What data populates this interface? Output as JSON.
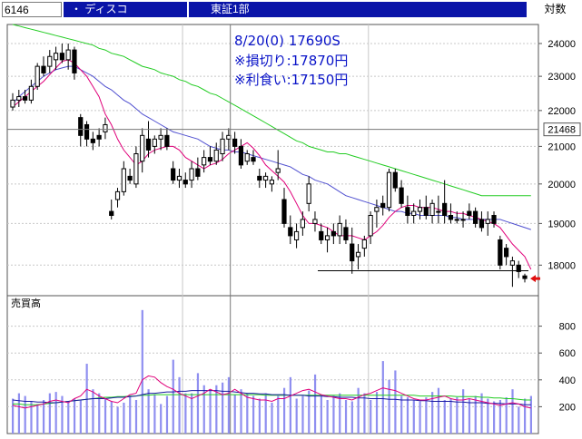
{
  "header": {
    "code": "6146",
    "name": "・ ディスコ",
    "market": "東証1部",
    "mode": "対数"
  },
  "annotations": [
    "8/20(0) 17690S",
    "※損切り:17870円",
    "※利食い:17150円"
  ],
  "colors": {
    "header_bg": "#0a14a8",
    "candle": "#000000",
    "ma_short": "#e0007a",
    "ma_mid": "#5050d0",
    "ma_long": "#22cc22",
    "volume_bar": "#8f8ff0",
    "annotation": "#0a14c8",
    "arrow": "#e01010"
  },
  "chart_data": [
    {
      "type": "candlestick",
      "y_axis_scale": "log",
      "ylim": [
        17300,
        24600
      ],
      "y_ticks": [
        18000,
        19000,
        20000,
        21000,
        22000,
        23000,
        24000
      ],
      "current_price_marker": 21468,
      "stop_loss_line": 17870,
      "candles": [
        [
          22100,
          22500,
          22000,
          22300
        ],
        [
          22300,
          22600,
          22100,
          22400
        ],
        [
          22400,
          22600,
          22200,
          22300
        ],
        [
          22300,
          22900,
          22200,
          22700
        ],
        [
          22700,
          23400,
          22600,
          23300
        ],
        [
          23300,
          23600,
          23000,
          23100
        ],
        [
          23300,
          23800,
          23100,
          23600
        ],
        [
          23500,
          23900,
          23200,
          23700
        ],
        [
          23700,
          24000,
          23400,
          23500
        ],
        [
          23500,
          24000,
          23200,
          23800
        ],
        [
          23800,
          23900,
          22900,
          23100
        ],
        [
          21800,
          21900,
          21000,
          21300
        ],
        [
          21600,
          21700,
          21000,
          21200
        ],
        [
          21200,
          21400,
          20900,
          21100
        ],
        [
          21300,
          21500,
          21000,
          21200
        ],
        [
          21400,
          21800,
          21200,
          21600
        ],
        [
          19300,
          19600,
          19100,
          19200
        ],
        [
          19600,
          19900,
          19400,
          19800
        ],
        [
          19800,
          20600,
          19700,
          20400
        ],
        [
          20200,
          20400,
          20000,
          20100
        ],
        [
          20000,
          21000,
          19900,
          20800
        ],
        [
          20600,
          21500,
          20300,
          21300
        ],
        [
          21200,
          21700,
          20700,
          20900
        ],
        [
          21000,
          21300,
          20800,
          21200
        ],
        [
          21200,
          21500,
          20900,
          21300
        ],
        [
          21300,
          21500,
          20900,
          21000
        ],
        [
          20400,
          20600,
          20000,
          20100
        ],
        [
          20100,
          20400,
          19900,
          20200
        ],
        [
          20100,
          20300,
          19900,
          20000
        ],
        [
          20100,
          20600,
          19900,
          20400
        ],
        [
          20400,
          20700,
          20100,
          20200
        ],
        [
          20500,
          20900,
          20300,
          20700
        ],
        [
          20700,
          21000,
          20500,
          20600
        ],
        [
          20600,
          21100,
          20500,
          20900
        ],
        [
          20800,
          21400,
          20600,
          21200
        ],
        [
          21200,
          21500,
          20900,
          21300
        ],
        [
          21200,
          21400,
          20800,
          21000
        ],
        [
          21000,
          21200,
          20400,
          20500
        ],
        [
          20600,
          20900,
          20500,
          20800
        ],
        [
          20700,
          20900,
          20500,
          20600
        ],
        [
          20200,
          20400,
          19900,
          20100
        ],
        [
          20100,
          20300,
          19900,
          20200
        ],
        [
          20000,
          20200,
          19800,
          20100
        ],
        [
          20300,
          20900,
          20100,
          20400
        ],
        [
          19600,
          19900,
          18900,
          19000
        ],
        [
          18900,
          19200,
          18500,
          18700
        ],
        [
          18600,
          19000,
          18400,
          18800
        ],
        [
          18900,
          19300,
          18700,
          19100
        ],
        [
          19500,
          20200,
          19300,
          20000
        ],
        [
          19000,
          19300,
          18800,
          19100
        ],
        [
          18800,
          19000,
          18500,
          18600
        ],
        [
          18600,
          18900,
          18300,
          18700
        ],
        [
          18800,
          19000,
          18500,
          18700
        ],
        [
          18700,
          19200,
          18500,
          19000
        ],
        [
          18900,
          19100,
          18500,
          18600
        ],
        [
          18500,
          18900,
          17800,
          18100
        ],
        [
          18200,
          18500,
          17900,
          18300
        ],
        [
          18400,
          18700,
          18200,
          18600
        ],
        [
          18700,
          19300,
          18500,
          19200
        ],
        [
          19300,
          19600,
          18900,
          19400
        ],
        [
          19500,
          19700,
          19200,
          19400
        ],
        [
          19400,
          20400,
          19300,
          20300
        ],
        [
          20300,
          20400,
          19800,
          19900
        ],
        [
          19900,
          20100,
          19400,
          19500
        ],
        [
          19400,
          19700,
          19000,
          19200
        ],
        [
          19200,
          19500,
          19000,
          19300
        ],
        [
          19300,
          19600,
          19100,
          19400
        ],
        [
          19400,
          19700,
          19100,
          19200
        ],
        [
          19200,
          19600,
          19000,
          19500
        ],
        [
          19300,
          19700,
          19000,
          19300
        ],
        [
          19500,
          20100,
          19000,
          19200
        ],
        [
          19200,
          19500,
          19000,
          19100
        ],
        [
          19100,
          19300,
          19000,
          19100
        ],
        [
          19100,
          19300,
          18900,
          19100
        ],
        [
          19300,
          19500,
          19100,
          19200
        ],
        [
          19300,
          19400,
          18900,
          19000
        ],
        [
          19100,
          19300,
          18800,
          18900
        ],
        [
          19000,
          19300,
          18700,
          19100
        ],
        [
          19200,
          19300,
          18900,
          19000
        ],
        [
          18600,
          18700,
          17900,
          18000
        ],
        [
          18400,
          18500,
          18000,
          18200
        ],
        [
          18000,
          18200,
          17500,
          18100
        ],
        [
          18000,
          18100,
          17700,
          17850
        ],
        [
          17750,
          17800,
          17600,
          17690
        ]
      ],
      "ma_short": [
        22100,
        22250,
        22400,
        22550,
        22700,
        22850,
        23050,
        23250,
        23450,
        23500,
        23400,
        23200,
        23000,
        22700,
        22400,
        21900,
        21600,
        21200,
        20900,
        20700,
        20500,
        20600,
        20800,
        20900,
        20950,
        21000,
        21000,
        20900,
        20700,
        20600,
        20500,
        20400,
        20500,
        20550,
        20650,
        20800,
        20900,
        21000,
        21100,
        20950,
        20750,
        20500,
        20350,
        20200,
        20050,
        19800,
        19500,
        19200,
        19000,
        19000,
        18950,
        18900,
        18800,
        18700,
        18700,
        18700,
        18650,
        18600,
        18700,
        18800,
        18950,
        19150,
        19300,
        19400,
        19450,
        19450,
        19400,
        19400,
        19400,
        19350,
        19300,
        19300,
        19250,
        19250,
        19200,
        19150,
        19100,
        19050,
        19000,
        18900,
        18700,
        18500,
        18350,
        18200,
        17900
      ],
      "ma_mid": [
        22200,
        22400,
        22550,
        22700,
        22850,
        23000,
        23100,
        23200,
        23250,
        23300,
        23300,
        23200,
        23100,
        23000,
        22850,
        22700,
        22600,
        22450,
        22300,
        22200,
        22050,
        21900,
        21800,
        21700,
        21600,
        21500,
        21400,
        21350,
        21300,
        21250,
        21200,
        21100,
        21000,
        20950,
        20900,
        20900,
        20850,
        20850,
        20800,
        20750,
        20700,
        20650,
        20600,
        20550,
        20500,
        20450,
        20350,
        20250,
        20200,
        20100,
        20050,
        20000,
        19900,
        19800,
        19700,
        19650,
        19600,
        19550,
        19500,
        19450,
        19400,
        19350,
        19300,
        19300,
        19250,
        19250,
        19200,
        19200,
        19200,
        19200,
        19200,
        19150,
        19150,
        19100,
        19100,
        19100,
        19100,
        19100,
        19100,
        19100,
        19050,
        19000,
        18950,
        18900,
        18850
      ],
      "ma_long": [
        24600,
        24550,
        24500,
        24450,
        24400,
        24350,
        24300,
        24250,
        24200,
        24150,
        24100,
        24050,
        24000,
        23950,
        23850,
        23800,
        23700,
        23650,
        23600,
        23500,
        23400,
        23300,
        23250,
        23200,
        23100,
        23050,
        23000,
        22900,
        22850,
        22750,
        22700,
        22600,
        22500,
        22450,
        22350,
        22250,
        22150,
        22050,
        21950,
        21850,
        21750,
        21650,
        21550,
        21450,
        21350,
        21250,
        21150,
        21100,
        21000,
        20950,
        20900,
        20850,
        20850,
        20800,
        20800,
        20750,
        20700,
        20650,
        20600,
        20550,
        20500,
        20450,
        20400,
        20350,
        20300,
        20250,
        20200,
        20150,
        20100,
        20050,
        20000,
        19950,
        19900,
        19850,
        19800,
        19750,
        19700,
        19700,
        19700,
        19700,
        19700,
        19700,
        19700,
        19700,
        19700
      ]
    },
    {
      "type": "bar",
      "title": "売買高",
      "ylim": [
        0,
        1000
      ],
      "y_ticks": [
        200,
        400,
        600,
        800
      ],
      "values": [
        260,
        300,
        280,
        240,
        220,
        250,
        300,
        310,
        280,
        240,
        260,
        250,
        520,
        330,
        300,
        260,
        240,
        200,
        230,
        280,
        250,
        920,
        330,
        290,
        220,
        280,
        550,
        420,
        300,
        300,
        450,
        360,
        320,
        360,
        380,
        420,
        290,
        330,
        300,
        280,
        260,
        300,
        230,
        280,
        340,
        420,
        260,
        280,
        320,
        440,
        280,
        250,
        280,
        300,
        250,
        240,
        340,
        300,
        250,
        310,
        540,
        400,
        470,
        280,
        270,
        250,
        240,
        270,
        310,
        340,
        250,
        260,
        270,
        330,
        260,
        280,
        300,
        260,
        240,
        250,
        270,
        330,
        200,
        260,
        280
      ],
      "ma_short": [
        210,
        200,
        190,
        200,
        210,
        220,
        240,
        250,
        240,
        230,
        260,
        280,
        330,
        310,
        280,
        260,
        240,
        230,
        260,
        290,
        300,
        400,
        430,
        420,
        380,
        350,
        330,
        300,
        280,
        260,
        280,
        300,
        330,
        310,
        290,
        300,
        330,
        300,
        270,
        260,
        250,
        250,
        240,
        260,
        260,
        280,
        300,
        320,
        330,
        310,
        290,
        280,
        270,
        260,
        260,
        250,
        270,
        290,
        300,
        320,
        340,
        330,
        320,
        300,
        280,
        260,
        250,
        250,
        260,
        270,
        280,
        260,
        250,
        250,
        260,
        250,
        240,
        230,
        220,
        210,
        220,
        230,
        220,
        200,
        190
      ],
      "ma_mid": [
        250,
        245,
        240,
        240,
        235,
        235,
        230,
        230,
        235,
        240,
        245,
        250,
        255,
        260,
        260,
        260,
        265,
        270,
        270,
        275,
        280,
        290,
        300,
        300,
        305,
        310,
        310,
        315,
        315,
        320,
        320,
        320,
        320,
        320,
        315,
        315,
        310,
        305,
        300,
        300,
        295,
        295,
        290,
        290,
        290,
        285,
        285,
        285,
        280,
        280,
        280,
        275,
        275,
        270,
        270,
        270,
        265,
        265,
        260,
        260,
        260,
        255,
        255,
        250,
        250,
        250,
        245,
        245,
        240,
        240,
        240,
        240,
        235,
        235,
        230,
        230,
        230,
        225,
        225,
        225,
        220,
        220,
        220,
        215,
        215
      ],
      "ma_long": [
        220,
        220,
        215,
        215,
        215,
        220,
        225,
        230,
        235,
        240,
        245,
        250,
        255,
        260,
        265,
        270,
        270,
        275,
        275,
        280,
        280,
        285,
        285,
        290,
        290,
        290,
        290,
        290,
        290,
        290,
        290,
        290,
        290,
        290,
        290,
        290,
        290,
        290,
        290,
        290,
        290,
        285,
        285,
        285,
        285,
        285,
        285,
        285,
        285,
        285,
        285,
        285,
        285,
        285,
        285,
        285,
        285,
        285,
        285,
        285,
        285,
        285,
        285,
        285,
        285,
        285,
        280,
        280,
        280,
        280,
        280,
        280,
        275,
        275,
        275,
        275,
        270,
        270,
        265,
        265,
        260,
        260,
        255,
        250,
        250
      ]
    }
  ]
}
